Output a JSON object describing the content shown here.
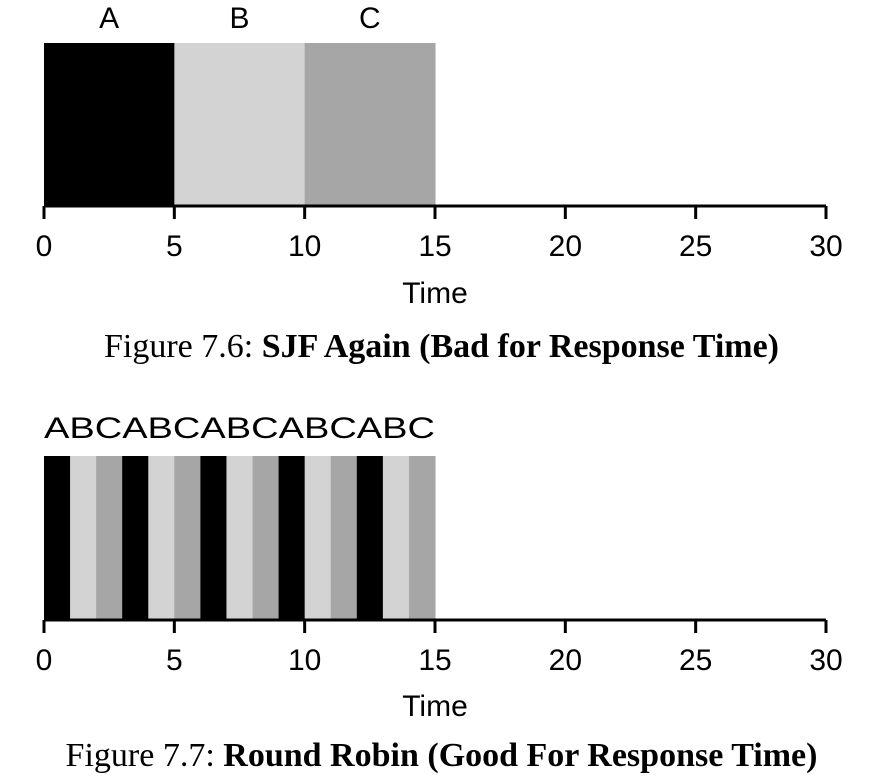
{
  "chart_data": [
    {
      "type": "timeline",
      "x": {
        "label": "Time",
        "range": [
          0,
          30
        ],
        "ticks": [
          0,
          5,
          10,
          15,
          20,
          25,
          30
        ]
      },
      "jobs": [
        {
          "name": "A",
          "color": "#000000"
        },
        {
          "name": "B",
          "color": "#d3d3d3"
        },
        {
          "name": "C",
          "color": "#a6a6a6"
        }
      ],
      "segments": [
        {
          "job": "A",
          "start": 0,
          "end": 5
        },
        {
          "job": "B",
          "start": 5,
          "end": 10
        },
        {
          "job": "C",
          "start": 10,
          "end": 15
        }
      ],
      "caption": {
        "prefix": "Figure 7.6:",
        "title": "SJF Again (Bad for Response Time)"
      }
    },
    {
      "type": "timeline",
      "x": {
        "label": "Time",
        "range": [
          0,
          30
        ],
        "ticks": [
          0,
          5,
          10,
          15,
          20,
          25,
          30
        ]
      },
      "jobs": [
        {
          "name": "A",
          "color": "#000000"
        },
        {
          "name": "B",
          "color": "#d3d3d3"
        },
        {
          "name": "C",
          "color": "#a6a6a6"
        }
      ],
      "segments": [
        {
          "job": "A",
          "start": 0,
          "end": 1
        },
        {
          "job": "B",
          "start": 1,
          "end": 2
        },
        {
          "job": "C",
          "start": 2,
          "end": 3
        },
        {
          "job": "A",
          "start": 3,
          "end": 4
        },
        {
          "job": "B",
          "start": 4,
          "end": 5
        },
        {
          "job": "C",
          "start": 5,
          "end": 6
        },
        {
          "job": "A",
          "start": 6,
          "end": 7
        },
        {
          "job": "B",
          "start": 7,
          "end": 8
        },
        {
          "job": "C",
          "start": 8,
          "end": 9
        },
        {
          "job": "A",
          "start": 9,
          "end": 10
        },
        {
          "job": "B",
          "start": 10,
          "end": 11
        },
        {
          "job": "C",
          "start": 11,
          "end": 12
        },
        {
          "job": "A",
          "start": 12,
          "end": 13
        },
        {
          "job": "B",
          "start": 13,
          "end": 14
        },
        {
          "job": "C",
          "start": 14,
          "end": 15
        }
      ],
      "caption": {
        "prefix": "Figure 7.7:",
        "title": "Round Robin (Good For Response Time)"
      }
    }
  ]
}
